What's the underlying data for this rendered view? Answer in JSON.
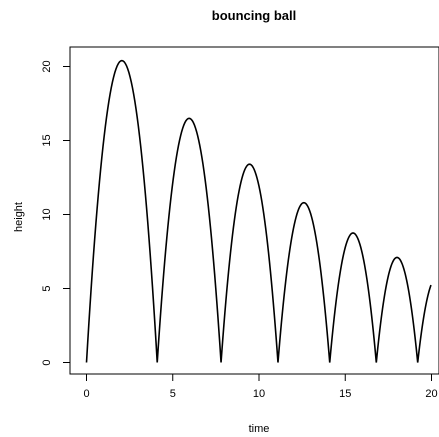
{
  "chart_data": {
    "type": "line",
    "title": "bouncing ball",
    "xlabel": "time",
    "ylabel": "height",
    "xlim": [
      0,
      20.0
    ],
    "ylim": [
      0,
      20.5
    ],
    "grid": false,
    "legend": "none",
    "x_ticks": [
      "0",
      "5",
      "10",
      "15",
      "20"
    ],
    "y_ticks": [
      "0",
      "5",
      "10",
      "15",
      "20"
    ],
    "line_color": "#000000",
    "bounces": [
      {
        "start": 0.0,
        "end": 4.1,
        "peak": 20.4
      },
      {
        "start": 4.1,
        "end": 7.8,
        "peak": 16.5
      },
      {
        "start": 7.8,
        "end": 11.1,
        "peak": 13.4
      },
      {
        "start": 11.1,
        "end": 14.1,
        "peak": 10.8
      },
      {
        "start": 14.1,
        "end": 16.8,
        "peak": 8.75
      },
      {
        "start": 16.8,
        "end": 19.2,
        "peak": 7.1
      },
      {
        "start": 19.2,
        "end": 21.4,
        "peak": 5.75
      }
    ]
  }
}
